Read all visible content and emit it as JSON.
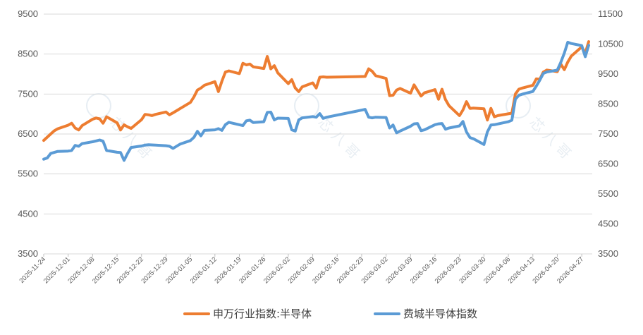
{
  "chart_data": {
    "type": "line",
    "title": "",
    "xlabel": "",
    "ylabel": "",
    "ylim_left": [
      3500,
      9500
    ],
    "yticks_left": [
      3500,
      4500,
      5500,
      6500,
      7500,
      8500,
      9500
    ],
    "ylim_right": [
      3500,
      11500
    ],
    "yticks_right": [
      3500,
      4500,
      5500,
      6500,
      7500,
      8500,
      9500,
      10500,
      11500
    ],
    "x_tick_labels": [
      "2025-11-24",
      "2025-12-01",
      "2025-12-08",
      "2025-12-15",
      "2025-12-22",
      "2025-12-29",
      "2026-01-05",
      "2026-01-12",
      "2026-01-19",
      "2026-01-26",
      "2026-02-02",
      "2026-02-09",
      "2026-02-16",
      "2026-02-23",
      "2026-03-02",
      "2026-03-09",
      "2026-03-16",
      "2026-03-23",
      "2026-03-30",
      "2026-04-06",
      "2026-04-13",
      "2026-04-20",
      "2026-04-27"
    ],
    "x_range": [
      "2025-11-24",
      "2026-04-30"
    ],
    "grid": "horizontal",
    "legend_position": "bottom",
    "series": [
      {
        "name": "申万行业指数:半导体",
        "axis": "left",
        "color": "#ed7d31",
        "points": [
          [
            "2025-11-24",
            6340
          ],
          [
            "2025-11-25",
            6420
          ],
          [
            "2025-11-26",
            6500
          ],
          [
            "2025-11-27",
            6580
          ],
          [
            "2025-11-28",
            6630
          ],
          [
            "2025-12-01",
            6720
          ],
          [
            "2025-12-02",
            6770
          ],
          [
            "2025-12-03",
            6650
          ],
          [
            "2025-12-04",
            6600
          ],
          [
            "2025-12-05",
            6710
          ],
          [
            "2025-12-08",
            6870
          ],
          [
            "2025-12-09",
            6900
          ],
          [
            "2025-12-10",
            6880
          ],
          [
            "2025-12-11",
            6770
          ],
          [
            "2025-12-12",
            6930
          ],
          [
            "2025-12-15",
            6780
          ],
          [
            "2025-12-16",
            6600
          ],
          [
            "2025-12-17",
            6730
          ],
          [
            "2025-12-18",
            6680
          ],
          [
            "2025-12-19",
            6640
          ],
          [
            "2025-12-22",
            6860
          ],
          [
            "2025-12-23",
            6990
          ],
          [
            "2025-12-24",
            6980
          ],
          [
            "2025-12-25",
            6960
          ],
          [
            "2025-12-26",
            6990
          ],
          [
            "2025-12-29",
            7050
          ],
          [
            "2025-12-30",
            6980
          ],
          [
            "2025-12-31",
            7030
          ],
          [
            "2026-01-05",
            7290
          ],
          [
            "2026-01-06",
            7430
          ],
          [
            "2026-01-07",
            7600
          ],
          [
            "2026-01-08",
            7650
          ],
          [
            "2026-01-09",
            7720
          ],
          [
            "2026-01-12",
            7810
          ],
          [
            "2026-01-13",
            7560
          ],
          [
            "2026-01-14",
            7820
          ],
          [
            "2026-01-15",
            8050
          ],
          [
            "2026-01-16",
            8080
          ],
          [
            "2026-01-19",
            8010
          ],
          [
            "2026-01-20",
            8270
          ],
          [
            "2026-01-21",
            8230
          ],
          [
            "2026-01-22",
            8250
          ],
          [
            "2026-01-23",
            8180
          ],
          [
            "2026-01-26",
            8140
          ],
          [
            "2026-01-27",
            8440
          ],
          [
            "2026-01-28",
            8130
          ],
          [
            "2026-01-29",
            8210
          ],
          [
            "2026-01-30",
            8030
          ],
          [
            "2026-02-02",
            7760
          ],
          [
            "2026-02-03",
            7860
          ],
          [
            "2026-02-04",
            7650
          ],
          [
            "2026-02-05",
            7560
          ],
          [
            "2026-02-06",
            7680
          ],
          [
            "2026-02-09",
            7780
          ],
          [
            "2026-02-10",
            7650
          ],
          [
            "2026-02-11",
            7920
          ],
          [
            "2026-02-12",
            7930
          ],
          [
            "2026-02-13",
            7920
          ],
          [
            "2026-02-24",
            7940
          ],
          [
            "2026-02-25",
            8130
          ],
          [
            "2026-02-26",
            8070
          ],
          [
            "2026-02-27",
            7960
          ],
          [
            "2026-03-02",
            7890
          ],
          [
            "2026-03-03",
            7460
          ],
          [
            "2026-03-04",
            7470
          ],
          [
            "2026-03-05",
            7600
          ],
          [
            "2026-03-06",
            7640
          ],
          [
            "2026-03-09",
            7520
          ],
          [
            "2026-03-10",
            7730
          ],
          [
            "2026-03-11",
            7590
          ],
          [
            "2026-03-12",
            7450
          ],
          [
            "2026-03-13",
            7530
          ],
          [
            "2026-03-16",
            7610
          ],
          [
            "2026-03-17",
            7370
          ],
          [
            "2026-03-18",
            7620
          ],
          [
            "2026-03-19",
            7360
          ],
          [
            "2026-03-20",
            7210
          ],
          [
            "2026-03-23",
            6960
          ],
          [
            "2026-03-24",
            7100
          ],
          [
            "2026-03-25",
            7310
          ],
          [
            "2026-03-26",
            7140
          ],
          [
            "2026-03-27",
            7150
          ],
          [
            "2026-03-30",
            7130
          ],
          [
            "2026-03-31",
            6850
          ],
          [
            "2026-04-01",
            7140
          ],
          [
            "2026-04-02",
            6930
          ],
          [
            "2026-04-03",
            6960
          ],
          [
            "2026-04-07",
            7020
          ],
          [
            "2026-04-08",
            7500
          ],
          [
            "2026-04-09",
            7620
          ],
          [
            "2026-04-10",
            7650
          ],
          [
            "2026-04-13",
            7720
          ],
          [
            "2026-04-14",
            7880
          ],
          [
            "2026-04-15",
            7870
          ],
          [
            "2026-04-16",
            8050
          ],
          [
            "2026-04-17",
            8100
          ],
          [
            "2026-04-20",
            8060
          ],
          [
            "2026-04-21",
            8250
          ],
          [
            "2026-04-22",
            8110
          ],
          [
            "2026-04-23",
            8300
          ],
          [
            "2026-04-24",
            8450
          ],
          [
            "2026-04-27",
            8680
          ],
          [
            "2026-04-28",
            8520
          ],
          [
            "2026-04-29",
            8810
          ]
        ]
      },
      {
        "name": "费城半导体指数",
        "axis": "right",
        "color": "#5b9bd5",
        "points": [
          [
            "2025-11-24",
            6660
          ],
          [
            "2025-11-25",
            6700
          ],
          [
            "2025-11-26",
            6850
          ],
          [
            "2025-11-28",
            6920
          ],
          [
            "2025-12-01",
            6930
          ],
          [
            "2025-12-02",
            6950
          ],
          [
            "2025-12-03",
            7120
          ],
          [
            "2025-12-04",
            7090
          ],
          [
            "2025-12-05",
            7180
          ],
          [
            "2025-12-08",
            7240
          ],
          [
            "2025-12-09",
            7270
          ],
          [
            "2025-12-10",
            7300
          ],
          [
            "2025-12-11",
            7260
          ],
          [
            "2025-12-12",
            6950
          ],
          [
            "2025-12-15",
            6890
          ],
          [
            "2025-12-16",
            6880
          ],
          [
            "2025-12-17",
            6620
          ],
          [
            "2025-12-18",
            6850
          ],
          [
            "2025-12-19",
            7050
          ],
          [
            "2025-12-22",
            7100
          ],
          [
            "2025-12-23",
            7130
          ],
          [
            "2025-12-24",
            7140
          ],
          [
            "2025-12-26",
            7130
          ],
          [
            "2025-12-29",
            7110
          ],
          [
            "2025-12-30",
            7090
          ],
          [
            "2025-12-31",
            7020
          ],
          [
            "2026-01-02",
            7160
          ],
          [
            "2026-01-05",
            7280
          ],
          [
            "2026-01-06",
            7390
          ],
          [
            "2026-01-07",
            7590
          ],
          [
            "2026-01-08",
            7440
          ],
          [
            "2026-01-09",
            7620
          ],
          [
            "2026-01-12",
            7640
          ],
          [
            "2026-01-13",
            7680
          ],
          [
            "2026-01-14",
            7620
          ],
          [
            "2026-01-15",
            7810
          ],
          [
            "2026-01-16",
            7890
          ],
          [
            "2026-01-20",
            7780
          ],
          [
            "2026-01-21",
            7940
          ],
          [
            "2026-01-22",
            7960
          ],
          [
            "2026-01-23",
            7880
          ],
          [
            "2026-01-26",
            7910
          ],
          [
            "2026-01-27",
            8220
          ],
          [
            "2026-01-28",
            8230
          ],
          [
            "2026-01-29",
            7970
          ],
          [
            "2026-01-30",
            8030
          ],
          [
            "2026-02-02",
            8020
          ],
          [
            "2026-02-03",
            7640
          ],
          [
            "2026-02-04",
            7600
          ],
          [
            "2026-02-05",
            7970
          ],
          [
            "2026-02-06",
            8040
          ],
          [
            "2026-02-09",
            8080
          ],
          [
            "2026-02-10",
            8060
          ],
          [
            "2026-02-11",
            8180
          ],
          [
            "2026-02-12",
            8020
          ],
          [
            "2026-02-13",
            8060
          ],
          [
            "2026-02-24",
            8320
          ],
          [
            "2026-02-25",
            8060
          ],
          [
            "2026-02-26",
            8040
          ],
          [
            "2026-02-27",
            8060
          ],
          [
            "2026-03-02",
            8050
          ],
          [
            "2026-03-03",
            7700
          ],
          [
            "2026-03-04",
            7800
          ],
          [
            "2026-03-05",
            7540
          ],
          [
            "2026-03-06",
            7600
          ],
          [
            "2026-03-09",
            7760
          ],
          [
            "2026-03-10",
            7840
          ],
          [
            "2026-03-11",
            7850
          ],
          [
            "2026-03-12",
            7610
          ],
          [
            "2026-03-13",
            7640
          ],
          [
            "2026-03-16",
            7810
          ],
          [
            "2026-03-17",
            7840
          ],
          [
            "2026-03-18",
            7850
          ],
          [
            "2026-03-19",
            7660
          ],
          [
            "2026-03-20",
            7700
          ],
          [
            "2026-03-23",
            7770
          ],
          [
            "2026-03-24",
            7920
          ],
          [
            "2026-03-25",
            7570
          ],
          [
            "2026-03-26",
            7380
          ],
          [
            "2026-03-27",
            7340
          ],
          [
            "2026-03-30",
            7150
          ],
          [
            "2026-03-31",
            7570
          ],
          [
            "2026-04-01",
            7800
          ],
          [
            "2026-04-02",
            7810
          ],
          [
            "2026-04-06",
            7910
          ],
          [
            "2026-04-07",
            7960
          ],
          [
            "2026-04-08",
            8660
          ],
          [
            "2026-04-09",
            8790
          ],
          [
            "2026-04-10",
            8830
          ],
          [
            "2026-04-13",
            8920
          ],
          [
            "2026-04-14",
            9100
          ],
          [
            "2026-04-15",
            9300
          ],
          [
            "2026-04-16",
            9520
          ],
          [
            "2026-04-17",
            9570
          ],
          [
            "2026-04-20",
            9630
          ],
          [
            "2026-04-21",
            9890
          ],
          [
            "2026-04-22",
            10200
          ],
          [
            "2026-04-23",
            10560
          ],
          [
            "2026-04-24",
            10520
          ],
          [
            "2026-04-27",
            10450
          ],
          [
            "2026-04-28",
            10080
          ],
          [
            "2026-04-29",
            10460
          ]
        ]
      }
    ]
  }
}
